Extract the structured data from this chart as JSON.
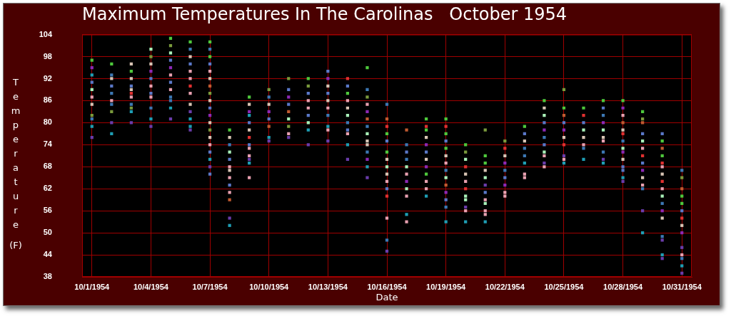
{
  "chart_data": {
    "type": "scatter",
    "title": "Maximum Temperatures In The Carolinas   October 1954",
    "xlabel": "Date",
    "ylabel": "Temperature (F)",
    "xlim": [
      "1954-09-30T12:00",
      "1954-10-31T12:00"
    ],
    "xticks": [
      {
        "value": "1954-10-01",
        "label": "10/1/1954"
      },
      {
        "value": "1954-10-04",
        "label": "10/4/1954"
      },
      {
        "value": "1954-10-07",
        "label": "10/7/1954"
      },
      {
        "value": "1954-10-10",
        "label": "10/10/1954"
      },
      {
        "value": "1954-10-13",
        "label": "10/13/1954"
      },
      {
        "value": "1954-10-16",
        "label": "10/16/1954"
      },
      {
        "value": "1954-10-19",
        "label": "10/19/1954"
      },
      {
        "value": "1954-10-22",
        "label": "10/22/1954"
      },
      {
        "value": "1954-10-25",
        "label": "10/25/1954"
      },
      {
        "value": "1954-10-28",
        "label": "10/28/1954"
      },
      {
        "value": "1954-10-31",
        "label": "10/31/1954"
      }
    ],
    "ylim": [
      38,
      104
    ],
    "yticks": [
      38,
      44,
      50,
      56,
      62,
      68,
      74,
      80,
      86,
      92,
      98,
      104
    ],
    "grid": true,
    "marker": "square",
    "series": [
      {
        "x": [
          "1954-10-01",
          "1954-10-01",
          "1954-10-01",
          "1954-10-01",
          "1954-10-01",
          "1954-10-01",
          "1954-10-01",
          "1954-10-01",
          "1954-10-01",
          "1954-10-01",
          "1954-10-01"
        ],
        "values": [
          97,
          95,
          93,
          91,
          89,
          87,
          85,
          82,
          81,
          79,
          76
        ],
        "colors": [
          "#4ec83c",
          "#8c28b4",
          "#1e9eb4",
          "#5a78c8",
          "#a8f0b8",
          "#e8a0b0",
          "#d8c4b4",
          "#7a9a3c",
          "#3c78b4",
          "#1e9eb4",
          "#6a3caa"
        ]
      },
      {
        "x": [
          "1954-10-02",
          "1954-10-02",
          "1954-10-02",
          "1954-10-02",
          "1954-10-02",
          "1954-10-02",
          "1954-10-02",
          "1954-10-02",
          "1954-10-02",
          "1954-10-02"
        ],
        "values": [
          96,
          93,
          92,
          90,
          88,
          86,
          85,
          83,
          80,
          77
        ],
        "colors": [
          "#4ec83c",
          "#3c78b4",
          "#d8c4b4",
          "#5a78c8",
          "#3c78b4",
          "#e8a0b0",
          "#3c78b4",
          "#7a9a3c",
          "#6a3caa",
          "#1e9eb4"
        ]
      },
      {
        "x": [
          "1954-10-03",
          "1954-10-03",
          "1954-10-03",
          "1954-10-03",
          "1954-10-03",
          "1954-10-03",
          "1954-10-03",
          "1954-10-03",
          "1954-10-03",
          "1954-10-03",
          "1954-10-03"
        ],
        "values": [
          96,
          94,
          92,
          90,
          89,
          88,
          87,
          85,
          84,
          83,
          80
        ],
        "colors": [
          "#d8c4b4",
          "#4ec83c",
          "#d8c4b4",
          "#5a78c8",
          "#d8c4b4",
          "#e03030",
          "#e8a0b0",
          "#3c78b4",
          "#7a9a3c",
          "#1e9eb4",
          "#6a3caa"
        ]
      },
      {
        "x": [
          "1954-10-04",
          "1954-10-04",
          "1954-10-04",
          "1954-10-04",
          "1954-10-04",
          "1954-10-04",
          "1954-10-04",
          "1954-10-04",
          "1954-10-04",
          "1954-10-04",
          "1954-10-04"
        ],
        "values": [
          100,
          98,
          96,
          94,
          92,
          90,
          88,
          87,
          84,
          81,
          79
        ],
        "colors": [
          "#a8f0b8",
          "#7a9a3c",
          "#d8c4b4",
          "#8c28b4",
          "#5a78c8",
          "#e8a0b0",
          "#5a78c8",
          "#e8a0b0",
          "#3c78b4",
          "#1e9eb4",
          "#6a3caa"
        ]
      },
      {
        "x": [
          "1954-10-05",
          "1954-10-05",
          "1954-10-05",
          "1954-10-05",
          "1954-10-05",
          "1954-10-05",
          "1954-10-05",
          "1954-10-05",
          "1954-10-05",
          "1954-10-05",
          "1954-10-05",
          "1954-10-05"
        ],
        "values": [
          103,
          101,
          99,
          97,
          95,
          93,
          91,
          89,
          87,
          86,
          84,
          81
        ],
        "colors": [
          "#4ec83c",
          "#7a9a3c",
          "#a8f0b8",
          "#5a78c8",
          "#8c28b4",
          "#e8a0b0",
          "#5a78c8",
          "#e8a0b0",
          "#3c78b4",
          "#3c78b4",
          "#1e9eb4",
          "#6a3caa"
        ]
      },
      {
        "x": [
          "1954-10-06",
          "1954-10-06",
          "1954-10-06",
          "1954-10-06",
          "1954-10-06",
          "1954-10-06",
          "1954-10-06",
          "1954-10-06",
          "1954-10-06",
          "1954-10-06",
          "1954-10-06",
          "1954-10-06",
          "1954-10-06"
        ],
        "values": [
          102,
          100,
          98,
          96,
          94,
          92,
          90,
          88,
          85,
          83,
          81,
          79,
          78
        ],
        "colors": [
          "#4ec83c",
          "#3c78b4",
          "#d8c4b4",
          "#5a78c8",
          "#e8a0b0",
          "#e8a0b0",
          "#e03030",
          "#e8a0b0",
          "#d8c4b4",
          "#6a3caa",
          "#1e9eb4",
          "#1e9eb4",
          "#6a3caa"
        ]
      },
      {
        "x": [
          "1954-10-07",
          "1954-10-07",
          "1954-10-07",
          "1954-10-07",
          "1954-10-07",
          "1954-10-07",
          "1954-10-07",
          "1954-10-07",
          "1954-10-07",
          "1954-10-07",
          "1954-10-07",
          "1954-10-07",
          "1954-10-07",
          "1954-10-07",
          "1954-10-07",
          "1954-10-07",
          "1954-10-07",
          "1954-10-07",
          "1954-10-07"
        ],
        "values": [
          102,
          100,
          98,
          96,
          94,
          92,
          90,
          88,
          86,
          84,
          82,
          80,
          78,
          76,
          74,
          72,
          70,
          68,
          66
        ],
        "colors": [
          "#4ec83c",
          "#3c78b4",
          "#4ec83c",
          "#5a78c8",
          "#e8a0b0",
          "#d8c4b4",
          "#c05a30",
          "#7a9a3c",
          "#d8c4b4",
          "#5a78c8",
          "#8c28b4",
          "#d8c4b4",
          "#7a9a3c",
          "#d8c4b4",
          "#e8a0b0",
          "#5a78c8",
          "#1e9eb4",
          "#6a3caa",
          "#5a78c8"
        ]
      },
      {
        "x": [
          "1954-10-08",
          "1954-10-08",
          "1954-10-08",
          "1954-10-08",
          "1954-10-08",
          "1954-10-08",
          "1954-10-08",
          "1954-10-08",
          "1954-10-08",
          "1954-10-08",
          "1954-10-08",
          "1954-10-08",
          "1954-10-08"
        ],
        "values": [
          78,
          76,
          74,
          72,
          70,
          68,
          67,
          65,
          63,
          61,
          59,
          54,
          52
        ],
        "colors": [
          "#4ec83c",
          "#d8c4b4",
          "#3c78b4",
          "#a8f0b8",
          "#5a78c8",
          "#e8a0b0",
          "#d8c4b4",
          "#e8a0b0",
          "#5a78c8",
          "#e8a0b0",
          "#c05a30",
          "#6a3caa",
          "#1e9eb4"
        ]
      },
      {
        "x": [
          "1954-10-09",
          "1954-10-09",
          "1954-10-09",
          "1954-10-09",
          "1954-10-09",
          "1954-10-09",
          "1954-10-09",
          "1954-10-09",
          "1954-10-09",
          "1954-10-09",
          "1954-10-09",
          "1954-10-09",
          "1954-10-09"
        ],
        "values": [
          87,
          85,
          83,
          82,
          80,
          78,
          76,
          74,
          73,
          71,
          70,
          69,
          65
        ],
        "colors": [
          "#4ec83c",
          "#d8c4b4",
          "#8c28b4",
          "#1e9eb4",
          "#5a78c8",
          "#d8c4b4",
          "#e03030",
          "#5a78c8",
          "#e8a0b0",
          "#e8a0b0",
          "#6a3caa",
          "#1e9eb4",
          "#e8a0b0"
        ]
      },
      {
        "x": [
          "1954-10-10",
          "1954-10-10",
          "1954-10-10",
          "1954-10-10",
          "1954-10-10",
          "1954-10-10",
          "1954-10-10",
          "1954-10-10"
        ],
        "values": [
          89,
          87,
          85,
          83,
          81,
          79,
          76,
          75
        ],
        "colors": [
          "#7a9a3c",
          "#3c78b4",
          "#d8c4b4",
          "#8c28b4",
          "#5a78c8",
          "#c05a30",
          "#1e9eb4",
          "#6a3caa"
        ]
      },
      {
        "x": [
          "1954-10-11",
          "1954-10-11",
          "1954-10-11",
          "1954-10-11",
          "1954-10-11",
          "1954-10-11",
          "1954-10-11",
          "1954-10-11",
          "1954-10-11"
        ],
        "values": [
          92,
          89,
          87,
          85,
          83,
          81,
          79,
          77,
          76
        ],
        "colors": [
          "#7a9a3c",
          "#5a78c8",
          "#8c28b4",
          "#5a78c8",
          "#c05a30",
          "#a8f0b8",
          "#7a9a3c",
          "#e8a0b0",
          "#6a3caa"
        ]
      },
      {
        "x": [
          "1954-10-12",
          "1954-10-12",
          "1954-10-12",
          "1954-10-12",
          "1954-10-12",
          "1954-10-12",
          "1954-10-12",
          "1954-10-12",
          "1954-10-12"
        ],
        "values": [
          92,
          90,
          88,
          86,
          84,
          82,
          80,
          78,
          74
        ],
        "colors": [
          "#4ec83c",
          "#7a9a3c",
          "#5a78c8",
          "#e8a0b0",
          "#e8a0b0",
          "#5a78c8",
          "#a8f0b8",
          "#1e9eb4",
          "#6a3caa"
        ]
      },
      {
        "x": [
          "1954-10-13",
          "1954-10-13",
          "1954-10-13",
          "1954-10-13",
          "1954-10-13",
          "1954-10-13",
          "1954-10-13",
          "1954-10-13",
          "1954-10-13",
          "1954-10-13"
        ],
        "values": [
          94,
          92,
          90,
          88,
          86,
          84,
          82,
          79,
          78,
          75
        ],
        "colors": [
          "#5a78c8",
          "#8c28b4",
          "#d8c4b4",
          "#5a78c8",
          "#d8c4b4",
          "#e8a0b0",
          "#3c78b4",
          "#1e9eb4",
          "#e8a0b0",
          "#6a3caa"
        ]
      },
      {
        "x": [
          "1954-10-14",
          "1954-10-14",
          "1954-10-14",
          "1954-10-14",
          "1954-10-14",
          "1954-10-14",
          "1954-10-14",
          "1954-10-14",
          "1954-10-14",
          "1954-10-14",
          "1954-10-14"
        ],
        "values": [
          92,
          90,
          88,
          86,
          84,
          82,
          80,
          78,
          77,
          74,
          70
        ],
        "colors": [
          "#e03030",
          "#5a78c8",
          "#4ec83c",
          "#e8a0b0",
          "#d8c4b4",
          "#a8f0b8",
          "#3c78b4",
          "#5a78c8",
          "#e8a0b0",
          "#1e9eb4",
          "#6a3caa"
        ]
      },
      {
        "x": [
          "1954-10-15",
          "1954-10-15",
          "1954-10-15",
          "1954-10-15",
          "1954-10-15",
          "1954-10-15",
          "1954-10-15",
          "1954-10-15",
          "1954-10-15",
          "1954-10-15",
          "1954-10-15",
          "1954-10-15",
          "1954-10-15",
          "1954-10-15"
        ],
        "values": [
          95,
          89,
          87,
          85,
          83,
          81,
          79,
          77,
          75,
          74,
          72,
          70,
          68,
          65
        ],
        "colors": [
          "#4ec83c",
          "#3c78b4",
          "#7a9a3c",
          "#e8a0b0",
          "#8c28b4",
          "#c05a30",
          "#3c78b4",
          "#a8f0b8",
          "#d8c4b4",
          "#d8c4b4",
          "#3c78b4",
          "#8c28b4",
          "#1e9eb4",
          "#6a3caa"
        ]
      },
      {
        "x": [
          "1954-10-16",
          "1954-10-16",
          "1954-10-16",
          "1954-10-16",
          "1954-10-16",
          "1954-10-16",
          "1954-10-16",
          "1954-10-16",
          "1954-10-16",
          "1954-10-16",
          "1954-10-16",
          "1954-10-16",
          "1954-10-16",
          "1954-10-16",
          "1954-10-16"
        ],
        "values": [
          85,
          81,
          79,
          77,
          75,
          72,
          70,
          68,
          66,
          64,
          62,
          60,
          54,
          48,
          45
        ],
        "colors": [
          "#3c78b4",
          "#c05a30",
          "#e03030",
          "#4ec83c",
          "#5a78c8",
          "#4ec83c",
          "#d8c4b4",
          "#a8f0b8",
          "#d8c4b4",
          "#e8a0b0",
          "#5a78c8",
          "#e03030",
          "#e8a0b0",
          "#3c78b4",
          "#6a3caa"
        ]
      },
      {
        "x": [
          "1954-10-17",
          "1954-10-17",
          "1954-10-17",
          "1954-10-17",
          "1954-10-17",
          "1954-10-17",
          "1954-10-17",
          "1954-10-17",
          "1954-10-17",
          "1954-10-17",
          "1954-10-17"
        ],
        "values": [
          78,
          74,
          72,
          70,
          68,
          66,
          64,
          62,
          60,
          55,
          53
        ],
        "colors": [
          "#c05a30",
          "#3c78b4",
          "#5a78c8",
          "#3c78b4",
          "#a8f0b8",
          "#e8a0b0",
          "#8c28b4",
          "#a8f0b8",
          "#e8a0b0",
          "#1e9eb4",
          "#e8a0b0"
        ]
      },
      {
        "x": [
          "1954-10-18",
          "1954-10-18",
          "1954-10-18",
          "1954-10-18",
          "1954-10-18",
          "1954-10-18",
          "1954-10-18",
          "1954-10-18",
          "1954-10-18",
          "1954-10-18",
          "1954-10-18",
          "1954-10-18"
        ],
        "values": [
          81,
          79,
          78,
          76,
          74,
          72,
          70,
          68,
          66,
          64,
          62,
          60
        ],
        "colors": [
          "#4ec83c",
          "#e03030",
          "#4ec83c",
          "#d8c4b4",
          "#8c28b4",
          "#5a78c8",
          "#d8c4b4",
          "#8c28b4",
          "#4ec83c",
          "#e8a0b0",
          "#e8a0b0",
          "#1e9eb4"
        ]
      },
      {
        "x": [
          "1954-10-19",
          "1954-10-19",
          "1954-10-19",
          "1954-10-19",
          "1954-10-19",
          "1954-10-19",
          "1954-10-19",
          "1954-10-19",
          "1954-10-19",
          "1954-10-19",
          "1954-10-19",
          "1954-10-19",
          "1954-10-19",
          "1954-10-19"
        ],
        "values": [
          81,
          79,
          77,
          75,
          73,
          71,
          69,
          67,
          65,
          63,
          61,
          59,
          57,
          53
        ],
        "colors": [
          "#4ec83c",
          "#e03030",
          "#4ec83c",
          "#5a78c8",
          "#4ec83c",
          "#d8c4b4",
          "#e8a0b0",
          "#3c78b4",
          "#a8f0b8",
          "#c05a30",
          "#8c28b4",
          "#5a78c8",
          "#3c78b4",
          "#1e9eb4"
        ]
      },
      {
        "x": [
          "1954-10-20",
          "1954-10-20",
          "1954-10-20",
          "1954-10-20",
          "1954-10-20",
          "1954-10-20",
          "1954-10-20",
          "1954-10-20",
          "1954-10-20",
          "1954-10-20",
          "1954-10-20",
          "1954-10-20"
        ],
        "values": [
          74,
          72,
          70,
          68,
          66,
          64,
          62,
          60,
          59,
          57,
          56,
          53
        ],
        "colors": [
          "#4ec83c",
          "#7a9a3c",
          "#a8f0b8",
          "#e03030",
          "#d8c4b4",
          "#e8a0b0",
          "#e03030",
          "#a8f0b8",
          "#a8f0b8",
          "#6a3caa",
          "#e8a0b0",
          "#1e9eb4"
        ]
      },
      {
        "x": [
          "1954-10-21",
          "1954-10-21",
          "1954-10-21",
          "1954-10-21",
          "1954-10-21",
          "1954-10-21",
          "1954-10-21",
          "1954-10-21",
          "1954-10-21",
          "1954-10-21",
          "1954-10-21",
          "1954-10-21"
        ],
        "values": [
          78,
          71,
          69,
          67,
          65,
          63,
          61,
          59,
          58,
          56,
          55,
          53
        ],
        "colors": [
          "#7a9a3c",
          "#4ec83c",
          "#4ec83c",
          "#d8c4b4",
          "#a8f0b8",
          "#6a3caa",
          "#5a78c8",
          "#e8a0b0",
          "#a8f0b8",
          "#e8a0b0",
          "#e8a0b0",
          "#1e9eb4"
        ]
      },
      {
        "x": [
          "1954-10-22",
          "1954-10-22",
          "1954-10-22",
          "1954-10-22",
          "1954-10-22",
          "1954-10-22",
          "1954-10-22",
          "1954-10-22",
          "1954-10-22"
        ],
        "values": [
          75,
          73,
          71,
          69,
          67,
          65,
          63,
          61,
          60
        ],
        "colors": [
          "#7a9a3c",
          "#e03030",
          "#d8c4b4",
          "#8c28b4",
          "#3c78b4",
          "#5a78c8",
          "#8c28b4",
          "#e8a0b0",
          "#e8a0b0"
        ]
      },
      {
        "x": [
          "1954-10-23",
          "1954-10-23",
          "1954-10-23",
          "1954-10-23",
          "1954-10-23",
          "1954-10-23",
          "1954-10-23",
          "1954-10-23"
        ],
        "values": [
          79,
          77,
          75,
          73,
          71,
          69,
          66,
          65
        ],
        "colors": [
          "#4ec83c",
          "#5a78c8",
          "#d8c4b4",
          "#3c78b4",
          "#3c78b4",
          "#1e9eb4",
          "#e8a0b0",
          "#e8a0b0"
        ]
      },
      {
        "x": [
          "1954-10-24",
          "1954-10-24",
          "1954-10-24",
          "1954-10-24",
          "1954-10-24",
          "1954-10-24",
          "1954-10-24",
          "1954-10-24",
          "1954-10-24",
          "1954-10-24",
          "1954-10-24"
        ],
        "values": [
          86,
          84,
          82,
          80,
          78,
          76,
          74,
          72,
          71,
          69,
          68
        ],
        "colors": [
          "#4ec83c",
          "#d8c4b4",
          "#a8f0b8",
          "#5a78c8",
          "#8c28b4",
          "#3c78b4",
          "#5a78c8",
          "#a8f0b8",
          "#e8a0b0",
          "#6a3caa",
          "#e8a0b0"
        ]
      },
      {
        "x": [
          "1954-10-25",
          "1954-10-25",
          "1954-10-25",
          "1954-10-25",
          "1954-10-25",
          "1954-10-25",
          "1954-10-25",
          "1954-10-25",
          "1954-10-25",
          "1954-10-25"
        ],
        "values": [
          89,
          84,
          82,
          80,
          78,
          76,
          74,
          71,
          70,
          69
        ],
        "colors": [
          "#7a9a3c",
          "#4ec83c",
          "#c05a30",
          "#5a78c8",
          "#8c28b4",
          "#d8c4b4",
          "#e03030",
          "#6a3caa",
          "#e8a0b0",
          "#1e9eb4"
        ]
      },
      {
        "x": [
          "1954-10-26",
          "1954-10-26",
          "1954-10-26",
          "1954-10-26",
          "1954-10-26",
          "1954-10-26",
          "1954-10-26",
          "1954-10-26"
        ],
        "values": [
          84,
          82,
          80,
          78,
          76,
          74,
          73,
          70
        ],
        "colors": [
          "#4ec83c",
          "#e03030",
          "#5a78c8",
          "#a8f0b8",
          "#d8c4b4",
          "#e8a0b0",
          "#3c78b4",
          "#1e9eb4"
        ]
      },
      {
        "x": [
          "1954-10-27",
          "1954-10-27",
          "1954-10-27",
          "1954-10-27",
          "1954-10-27",
          "1954-10-27",
          "1954-10-27",
          "1954-10-27",
          "1954-10-27",
          "1954-10-27"
        ],
        "values": [
          86,
          84,
          82,
          80,
          78,
          76,
          75,
          72,
          70,
          69
        ],
        "colors": [
          "#4ec83c",
          "#5a78c8",
          "#3c78b4",
          "#8c28b4",
          "#a8f0b8",
          "#d8c4b4",
          "#e8a0b0",
          "#3c78b4",
          "#6a3caa",
          "#1e9eb4"
        ]
      },
      {
        "x": [
          "1954-10-28",
          "1954-10-28",
          "1954-10-28",
          "1954-10-28",
          "1954-10-28",
          "1954-10-28",
          "1954-10-28",
          "1954-10-28",
          "1954-10-28",
          "1954-10-28",
          "1954-10-28",
          "1954-10-28",
          "1954-10-28",
          "1954-10-28"
        ],
        "values": [
          86,
          84,
          82,
          80,
          78,
          77,
          75,
          73,
          72,
          70,
          68,
          67,
          65,
          64
        ],
        "colors": [
          "#4ec83c",
          "#8c28b4",
          "#e8a0b0",
          "#c05a30",
          "#d8c4b4",
          "#e03030",
          "#3c78b4",
          "#a8f0b8",
          "#8c28b4",
          "#d8c4b4",
          "#5a78c8",
          "#5a78c8",
          "#1e9eb4",
          "#6a3caa"
        ]
      },
      {
        "x": [
          "1954-10-29",
          "1954-10-29",
          "1954-10-29",
          "1954-10-29",
          "1954-10-29",
          "1954-10-29",
          "1954-10-29",
          "1954-10-29",
          "1954-10-29",
          "1954-10-29",
          "1954-10-29",
          "1954-10-29",
          "1954-10-29",
          "1954-10-29"
        ],
        "values": [
          83,
          81,
          80,
          77,
          75,
          73,
          71,
          69,
          67,
          65,
          63,
          62,
          56,
          50
        ],
        "colors": [
          "#4ec83c",
          "#7a9a3c",
          "#c05a30",
          "#5a78c8",
          "#a8f0b8",
          "#e8a0b0",
          "#e03030",
          "#5a78c8",
          "#8c28b4",
          "#d8c4b4",
          "#e8a0b0",
          "#3c78b4",
          "#6a3caa",
          "#1e9eb4"
        ]
      },
      {
        "x": [
          "1954-10-30",
          "1954-10-30",
          "1954-10-30",
          "1954-10-30",
          "1954-10-30",
          "1954-10-30",
          "1954-10-30",
          "1954-10-30",
          "1954-10-30",
          "1954-10-30",
          "1954-10-30",
          "1954-10-30",
          "1954-10-30",
          "1954-10-30",
          "1954-10-30",
          "1954-10-30",
          "1954-10-30"
        ],
        "values": [
          77,
          75,
          73,
          71,
          69,
          68,
          66,
          64,
          62,
          60,
          58,
          56,
          54,
          49,
          48,
          44,
          43
        ],
        "colors": [
          "#5a78c8",
          "#4ec83c",
          "#c05a30",
          "#4ec83c",
          "#e03030",
          "#e8a0b0",
          "#d8c4b4",
          "#e03030",
          "#e8a0b0",
          "#a8f0b8",
          "#3c78b4",
          "#8c28b4",
          "#d8c4b4",
          "#3c78b4",
          "#6a3caa",
          "#1e9eb4",
          "#6a3caa"
        ]
      },
      {
        "x": [
          "1954-10-31",
          "1954-10-31",
          "1954-10-31",
          "1954-10-31",
          "1954-10-31",
          "1954-10-31",
          "1954-10-31",
          "1954-10-31",
          "1954-10-31",
          "1954-10-31",
          "1954-10-31",
          "1954-10-31",
          "1954-10-31",
          "1954-10-31"
        ],
        "values": [
          67,
          65,
          62,
          60,
          58,
          56,
          54,
          52,
          50,
          46,
          44,
          43,
          41,
          39
        ],
        "colors": [
          "#3c78b4",
          "#7a9a3c",
          "#c05a30",
          "#4ec83c",
          "#4ec83c",
          "#5a78c8",
          "#e03030",
          "#d8c4b4",
          "#8c28b4",
          "#6a3caa",
          "#e8a0b0",
          "#3c78b4",
          "#1e9eb4",
          "#6a3caa"
        ]
      }
    ]
  }
}
